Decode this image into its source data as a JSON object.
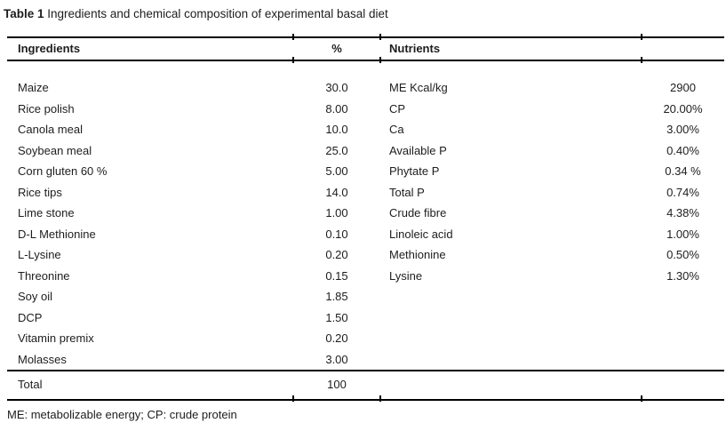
{
  "caption": {
    "bold": "Table 1",
    "rest": " Ingredients and chemical composition of experimental basal diet"
  },
  "table": {
    "headers": {
      "ingredients": "Ingredients",
      "percent": "%",
      "nutrients": "Nutrients"
    },
    "ingredients": [
      {
        "name": "Maize",
        "percent": "30.0"
      },
      {
        "name": "Rice polish",
        "percent": "8.00"
      },
      {
        "name": "Canola meal",
        "percent": "10.0"
      },
      {
        "name": "Soybean meal",
        "percent": "25.0"
      },
      {
        "name": "Corn gluten 60 %",
        "percent": "5.00"
      },
      {
        "name": "Rice tips",
        "percent": "14.0"
      },
      {
        "name": "Lime stone",
        "percent": "1.00"
      },
      {
        "name": "D-L Methionine",
        "percent": "0.10"
      },
      {
        "name": "L-Lysine",
        "percent": "0.20"
      },
      {
        "name": "Threonine",
        "percent": "0.15"
      },
      {
        "name": "Soy oil",
        "percent": "1.85"
      },
      {
        "name": "DCP",
        "percent": "1.50"
      },
      {
        "name": "Vitamin premix",
        "percent": "0.20"
      },
      {
        "name": "Molasses",
        "percent": "3.00"
      }
    ],
    "total": {
      "label": "Total",
      "value": "100"
    },
    "nutrients": [
      {
        "name": "ME Kcal/kg",
        "value": "2900"
      },
      {
        "name": "CP",
        "value": "20.00%"
      },
      {
        "name": "Ca",
        "value": "3.00%"
      },
      {
        "name": "Available P",
        "value": "0.40%"
      },
      {
        "name": "Phytate P",
        "value": "0.34 %"
      },
      {
        "name": "Total P",
        "value": "0.74%"
      },
      {
        "name": "Crude fibre",
        "value": "4.38%"
      },
      {
        "name": "Linoleic acid",
        "value": "1.00%"
      },
      {
        "name": "Methionine",
        "value": "0.50%"
      },
      {
        "name": "Lysine",
        "value": "1.30%"
      }
    ],
    "footnote": "ME: metabolizable energy; CP: crude protein"
  },
  "colors": {
    "text": "#1d1d1d",
    "rule": "#000000",
    "background": "#ffffff"
  }
}
